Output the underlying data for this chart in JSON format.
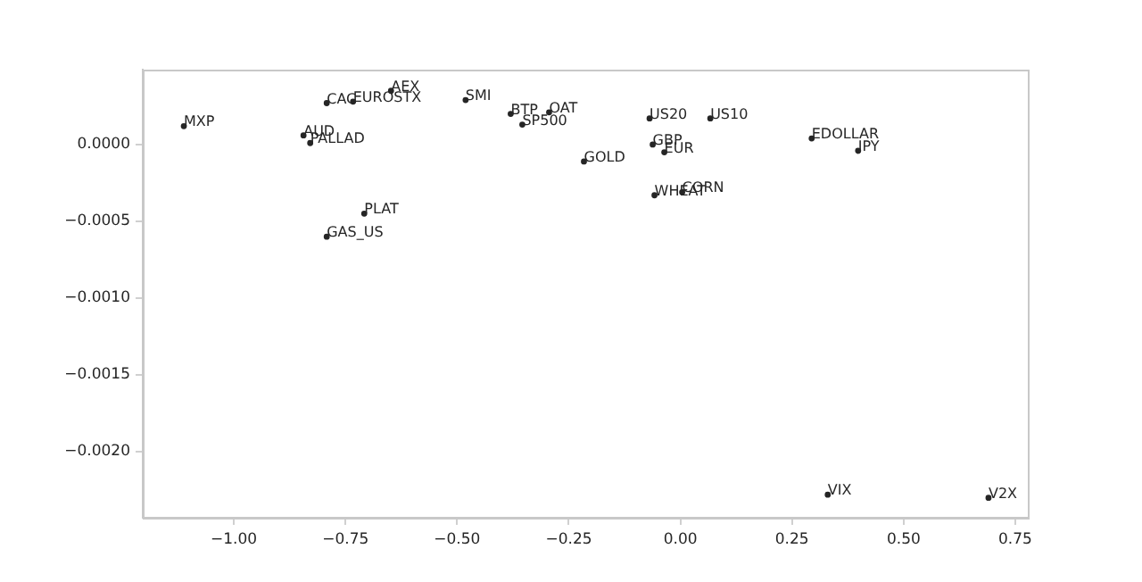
{
  "chart_data": {
    "type": "scatter",
    "marker": "circle",
    "grid": false,
    "legend": false,
    "xlim": [
      -1.204,
      0.778
    ],
    "ylim": [
      -0.00243,
      0.000488
    ],
    "xticks": [
      {
        "value": -1,
        "label": "−1.00"
      },
      {
        "value": -0.75,
        "label": "−0.75"
      },
      {
        "value": -0.5,
        "label": "−0.50"
      },
      {
        "value": -0.25,
        "label": "−0.25"
      },
      {
        "value": 0,
        "label": "0.00"
      },
      {
        "value": 0.25,
        "label": "0.25"
      },
      {
        "value": 0.5,
        "label": "0.50"
      },
      {
        "value": 0.75,
        "label": "0.75"
      }
    ],
    "yticks": [
      {
        "value": 0,
        "label": "0.0000"
      },
      {
        "value": -0.0005,
        "label": "−0.0005"
      },
      {
        "value": -0.001,
        "label": "−0.0010"
      },
      {
        "value": -0.0015,
        "label": "−0.0015"
      },
      {
        "value": -0.002,
        "label": "−0.0020"
      }
    ],
    "series": [
      {
        "color": "#262626",
        "x": [
          -1.112,
          -0.792,
          -0.733,
          -0.648,
          -0.481,
          -0.844,
          -0.829,
          -0.708,
          -0.792,
          -0.38,
          -0.294,
          -0.354,
          -0.069,
          0.067,
          -0.062,
          -0.036,
          -0.216,
          -0.058,
          0.004,
          0.294,
          0.398,
          0.33,
          0.69
        ],
        "values": [
          0.00012,
          0.00027,
          0.00028,
          0.00035,
          0.00029,
          6e-05,
          1e-05,
          -0.00045,
          -0.0006,
          0.0002,
          0.00021,
          0.00013,
          0.00017,
          0.00017,
          0,
          -5e-05,
          -0.00011,
          -0.00033,
          -0.00031,
          4e-05,
          -4e-05,
          -0.00228,
          -0.0023
        ],
        "value_labels": [
          "MXP",
          "CAC",
          "EUROSTX",
          "AEX",
          "SMI",
          "AUD",
          "PALLAD",
          "PLAT",
          "GAS_US",
          "BTP",
          "OAT",
          "SP500",
          "US20",
          "US10",
          "GBP",
          "EUR",
          "GOLD",
          "WHEAT",
          "CORN",
          "EDOLLAR",
          "JPY",
          "VIX",
          "V2X"
        ]
      }
    ]
  }
}
